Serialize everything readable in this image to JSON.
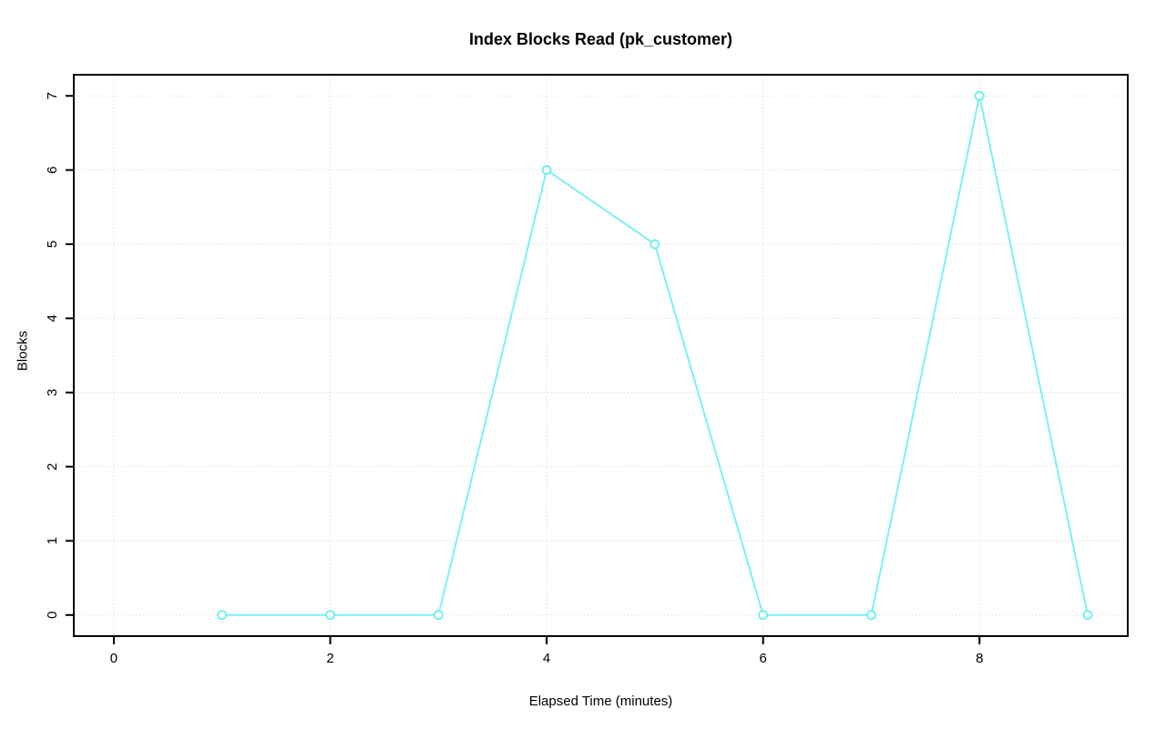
{
  "chart_data": {
    "type": "line",
    "title": "Index Blocks Read (pk_customer)",
    "xlabel": "Elapsed Time (minutes)",
    "ylabel": "Blocks",
    "x": [
      1,
      2,
      3,
      4,
      5,
      6,
      7,
      8,
      9
    ],
    "series": [
      {
        "name": "index-blocks-read-pk_customer",
        "values": [
          0,
          0,
          0,
          6,
          5,
          0,
          0,
          7,
          0
        ]
      }
    ],
    "xlim": [
      -0.37,
      9.37
    ],
    "ylim": [
      -0.285,
      7.285
    ],
    "xticks": [
      0,
      2,
      4,
      6,
      8
    ],
    "yticks": [
      0,
      1,
      2,
      3,
      4,
      5,
      6,
      7
    ],
    "grid": "dotted",
    "grid_x_at": [
      0,
      2,
      4,
      6,
      8
    ],
    "grid_y_at": [
      0,
      1,
      2,
      3,
      4,
      5,
      6,
      7
    ],
    "legend": "none",
    "marker": "open-circle",
    "line_color": "#7DF0F3",
    "marker_color": "#6AEEF2",
    "grid_color": "#D5D5D5",
    "axis_color": "#000000",
    "text_color": "#000000",
    "background_color": "#FFFFFF"
  }
}
